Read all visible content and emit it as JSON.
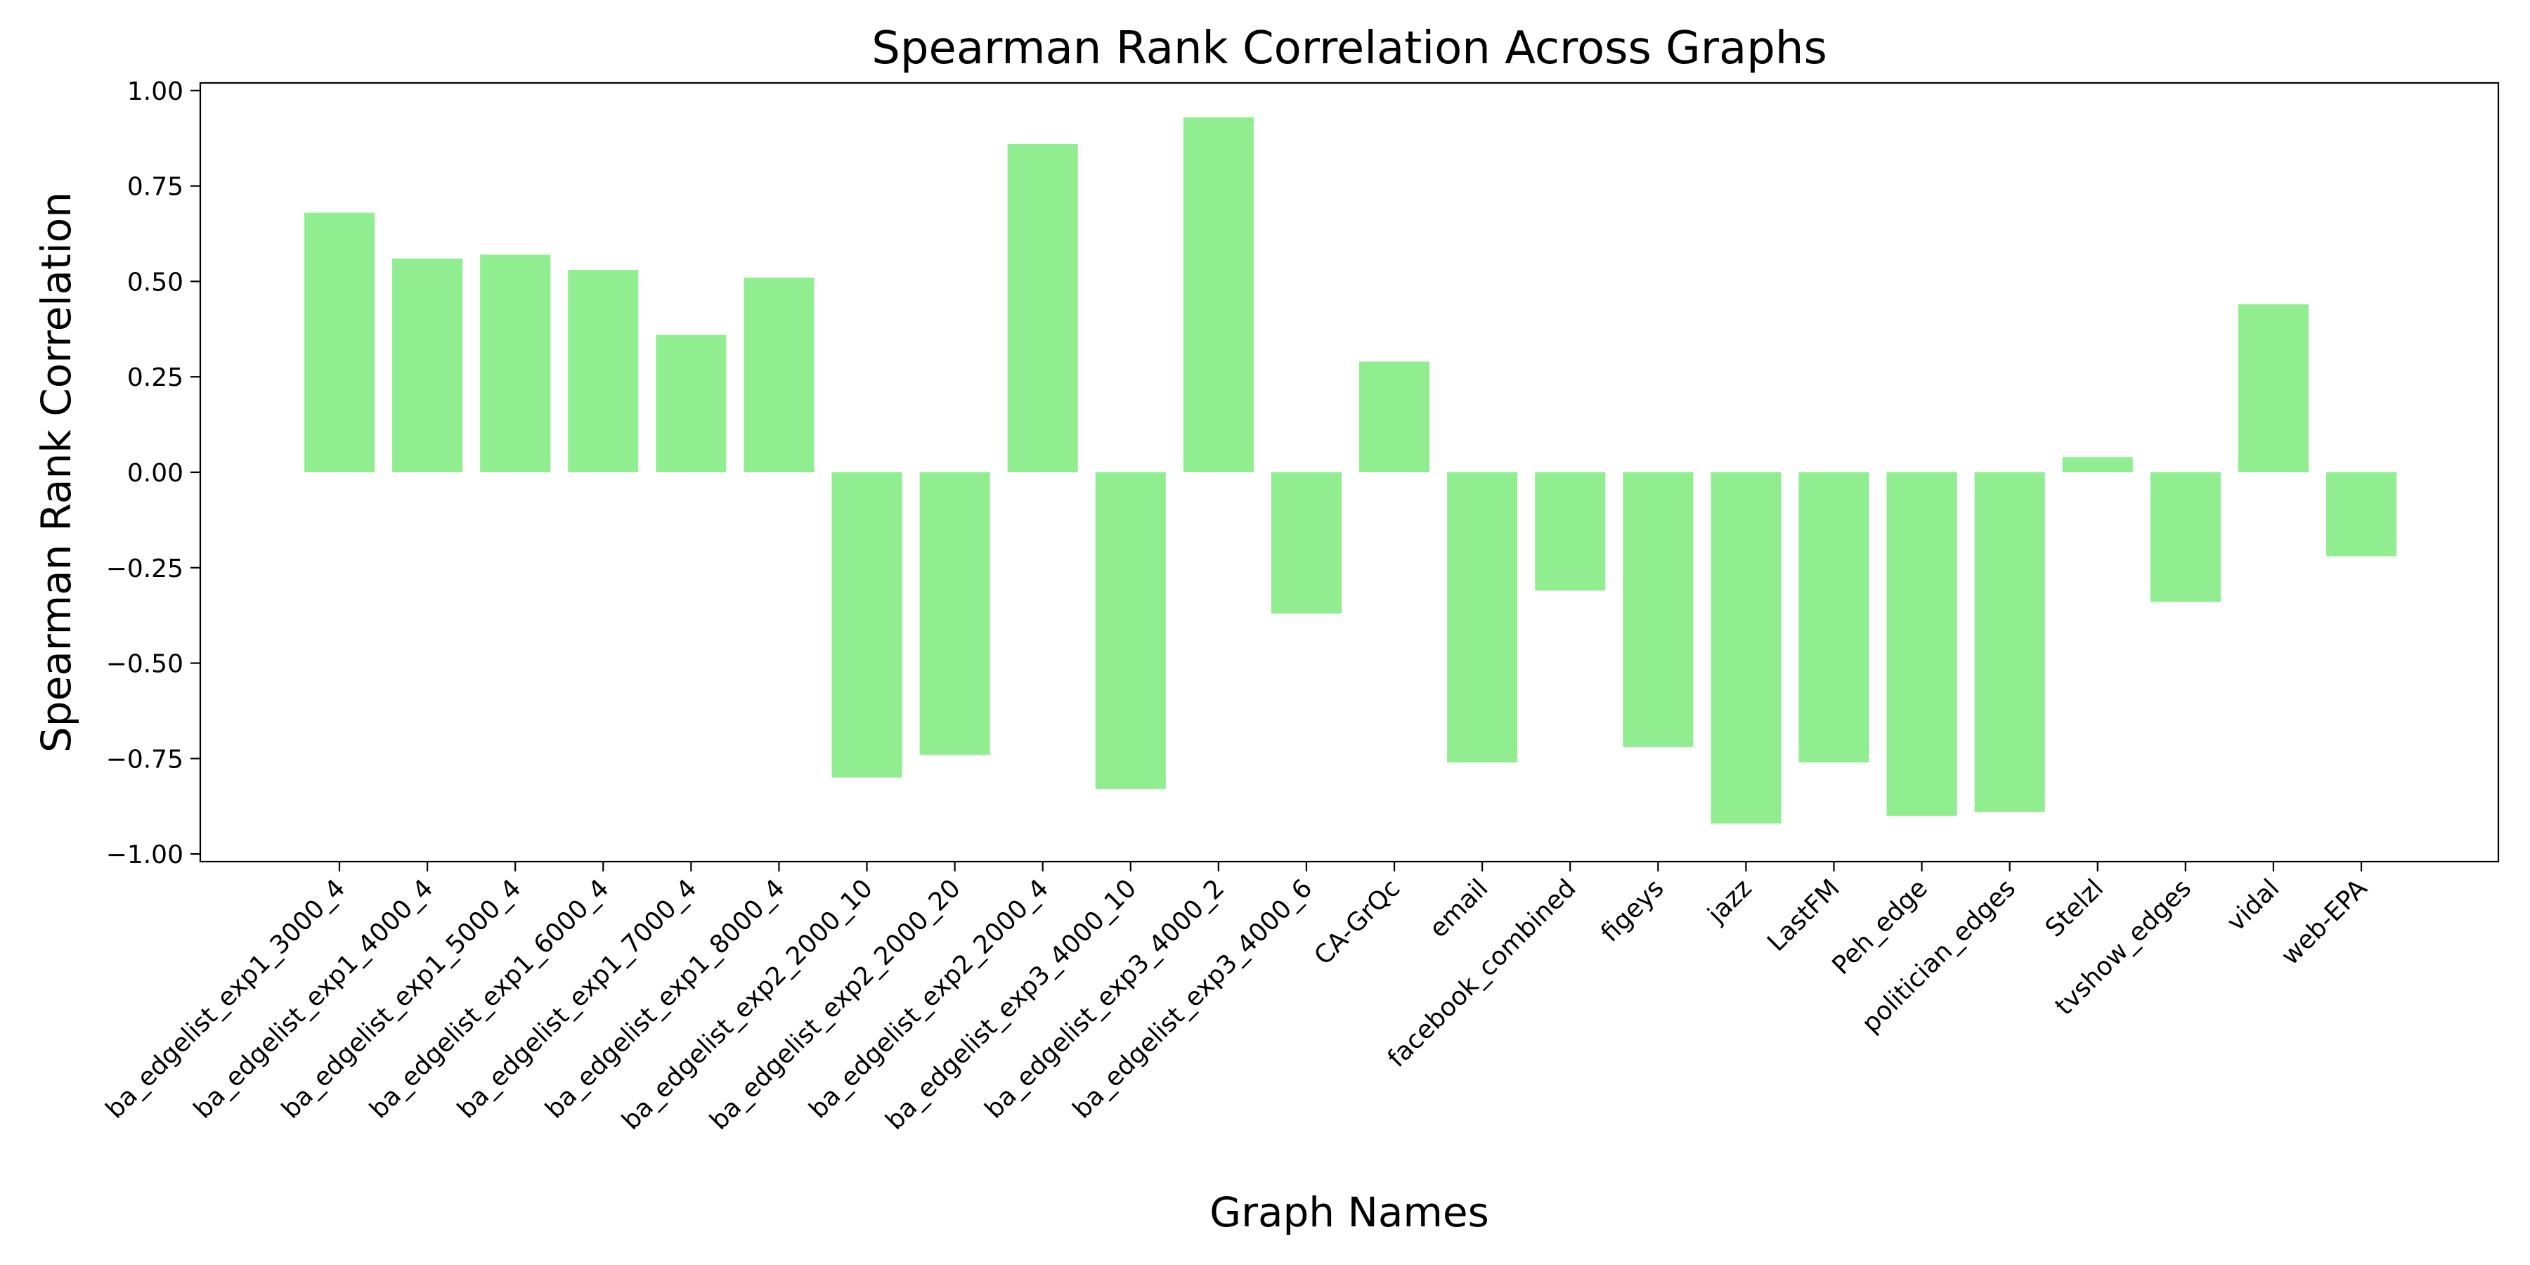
{
  "chart_data": {
    "type": "bar",
    "title": "Spearman Rank Correlation Across Graphs",
    "xlabel": "Graph Names",
    "ylabel": "Spearman Rank Correlation",
    "ylim": [
      -1.02,
      1.02
    ],
    "yticks": [
      1.0,
      0.75,
      0.5,
      0.25,
      0.0,
      -0.25,
      -0.5,
      -0.75,
      -1.0
    ],
    "ytick_labels": [
      "1.00",
      "0.75",
      "0.50",
      "0.25",
      "0.00",
      "−0.25",
      "−0.50",
      "−0.75",
      "−1.00"
    ],
    "grid": false,
    "bar_color": "#90ee90",
    "categories": [
      "ba_edgelist_exp1_3000_4",
      "ba_edgelist_exp1_4000_4",
      "ba_edgelist_exp1_5000_4",
      "ba_edgelist_exp1_6000_4",
      "ba_edgelist_exp1_7000_4",
      "ba_edgelist_exp1_8000_4",
      "ba_edgelist_exp2_2000_10",
      "ba_edgelist_exp2_2000_20",
      "ba_edgelist_exp2_2000_4",
      "ba_edgelist_exp3_4000_10",
      "ba_edgelist_exp3_4000_2",
      "ba_edgelist_exp3_4000_6",
      "CA-GrQc",
      "email",
      "facebook_combined",
      "figeys",
      "jazz",
      "LastFM",
      "Peh_edge",
      "politician_edges",
      "Stelzl",
      "tvshow_edges",
      "vidal",
      "web-EPA"
    ],
    "values": [
      0.68,
      0.56,
      0.57,
      0.53,
      0.36,
      0.51,
      -0.8,
      -0.74,
      0.86,
      -0.83,
      0.93,
      -0.37,
      0.29,
      -0.76,
      -0.31,
      -0.72,
      -0.92,
      -0.76,
      -0.9,
      -0.89,
      0.04,
      -0.34,
      0.44,
      -0.22
    ]
  }
}
